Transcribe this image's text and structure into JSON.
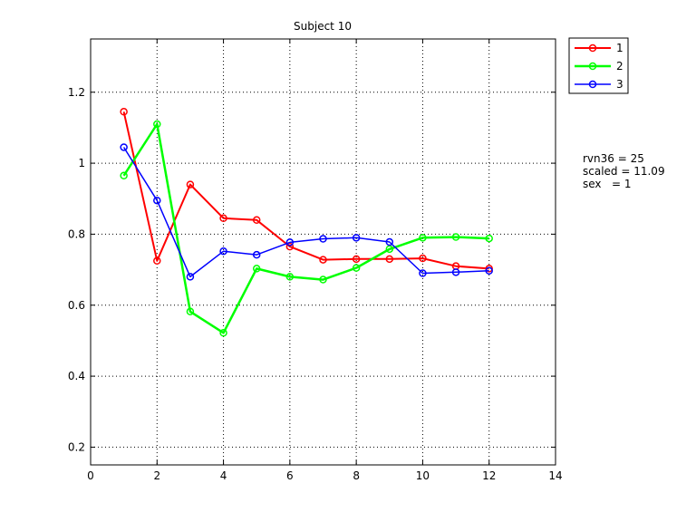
{
  "chart_data": {
    "type": "line",
    "title": "Subject 10",
    "xlabel": "",
    "ylabel": "",
    "xlim": [
      0,
      14
    ],
    "ylim": [
      0.15,
      1.35
    ],
    "xticks": [
      "0",
      "2",
      "4",
      "6",
      "8",
      "10",
      "12",
      "14"
    ],
    "yticks": [
      "0.2",
      "0.4",
      "0.6",
      "0.8",
      "1",
      "1.2"
    ],
    "grid": true,
    "legend": "outside-top-right",
    "x": [
      1,
      2,
      3,
      4,
      5,
      6,
      7,
      8,
      9,
      10,
      11,
      12
    ],
    "series": [
      {
        "name": "1",
        "color": "#ff0000",
        "marker": "circle",
        "values": [
          1.145,
          0.725,
          0.94,
          0.845,
          0.84,
          0.765,
          0.728,
          0.73,
          0.73,
          0.732,
          0.71,
          0.703
        ]
      },
      {
        "name": "2",
        "color": "#00ff00",
        "marker": "circle",
        "values": [
          0.965,
          1.11,
          0.582,
          0.522,
          0.703,
          0.68,
          0.672,
          0.705,
          0.758,
          0.79,
          0.792,
          0.788
        ]
      },
      {
        "name": "3",
        "color": "#0000ff",
        "marker": "circle",
        "values": [
          1.045,
          0.895,
          0.68,
          0.752,
          0.742,
          0.777,
          0.787,
          0.79,
          0.778,
          0.69,
          0.693,
          0.697
        ]
      }
    ],
    "annotations": [
      "rvn36 = 25",
      "scaled = 11.09",
      "sex   = 1"
    ]
  }
}
